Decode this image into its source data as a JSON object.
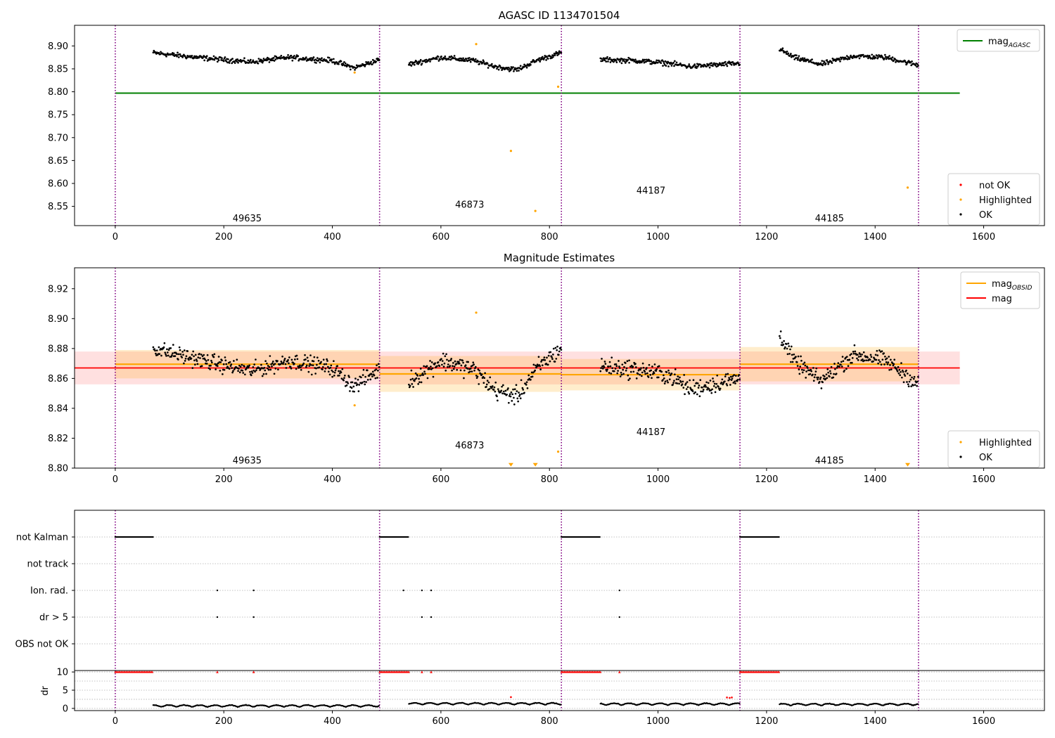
{
  "colors": {
    "ok": "#000000",
    "highlighted": "#ffa500",
    "not_ok": "#ff0000",
    "agasc": "#008000",
    "obs_mag": "#ffa500",
    "mag": "#ff0000",
    "obs_boundary": "#800080",
    "grid": "#b0b0b0"
  },
  "xaxis": {
    "range": [
      -75,
      1712
    ],
    "ticks": [
      0,
      200,
      400,
      600,
      800,
      1000,
      1200,
      1400,
      1600
    ],
    "tick_labels": [
      "0",
      "200",
      "400",
      "600",
      "800",
      "1000",
      "1200",
      "1400",
      "1600"
    ]
  },
  "obs_boundaries": [
    0,
    487,
    822,
    1151,
    1480
  ],
  "chart_data": [
    {
      "type": "scatter",
      "title": "AGASC ID 1134701504",
      "ylim": [
        8.508,
        8.945
      ],
      "yticks": [
        8.55,
        8.6,
        8.65,
        8.7,
        8.75,
        8.8,
        8.85,
        8.9
      ],
      "ytick_labels": [
        "8.55",
        "8.60",
        "8.65",
        "8.70",
        "8.75",
        "8.80",
        "8.85",
        "8.90"
      ],
      "agasc_line": {
        "y": 8.797,
        "x": [
          0,
          1556
        ]
      },
      "obs_labels": [
        {
          "text": "49635",
          "x": 243,
          "y": 8.523
        },
        {
          "text": "46873",
          "x": 653,
          "y": 8.553
        },
        {
          "text": "44187",
          "x": 987,
          "y": 8.584
        },
        {
          "text": "44185",
          "x": 1316,
          "y": 8.523
        }
      ],
      "segments": [
        {
          "x": [
            70,
            487
          ],
          "profile": [
            [
              70,
              8.885
            ],
            [
              150,
              8.875
            ],
            [
              250,
              8.865
            ],
            [
              320,
              8.875
            ],
            [
              400,
              8.868
            ],
            [
              440,
              8.852
            ],
            [
              487,
              8.87
            ]
          ],
          "spread": 0.008
        },
        {
          "x": [
            541,
            822
          ],
          "profile": [
            [
              541,
              8.86
            ],
            [
              600,
              8.875
            ],
            [
              660,
              8.868
            ],
            [
              700,
              8.855
            ],
            [
              740,
              8.848
            ],
            [
              780,
              8.87
            ],
            [
              822,
              8.885
            ]
          ],
          "spread": 0.008
        },
        {
          "x": [
            894,
            1151
          ],
          "profile": [
            [
              894,
              8.87
            ],
            [
              960,
              8.868
            ],
            [
              1020,
              8.862
            ],
            [
              1060,
              8.855
            ],
            [
              1151,
              8.862
            ]
          ],
          "spread": 0.008
        },
        {
          "x": [
            1224,
            1480
          ],
          "profile": [
            [
              1224,
              8.893
            ],
            [
              1250,
              8.875
            ],
            [
              1300,
              8.86
            ],
            [
              1360,
              8.878
            ],
            [
              1420,
              8.875
            ],
            [
              1480,
              8.858
            ]
          ],
          "spread": 0.008
        }
      ],
      "highlighted": [
        {
          "x": 441,
          "y": 8.842
        },
        {
          "x": 665,
          "y": 8.904
        },
        {
          "x": 729,
          "y": 8.671
        },
        {
          "x": 774,
          "y": 8.54
        },
        {
          "x": 816,
          "y": 8.811
        },
        {
          "x": 1460,
          "y": 8.591
        }
      ],
      "legend_top": [
        {
          "label": "mag",
          "sub": "AGASC",
          "color": "#008000",
          "kind": "line"
        }
      ],
      "legend_bottom": [
        {
          "label": "not OK",
          "color": "#ff0000",
          "kind": "dot"
        },
        {
          "label": "Highlighted",
          "color": "#ffa500",
          "kind": "dot"
        },
        {
          "label": "OK",
          "color": "#000000",
          "kind": "dot"
        }
      ]
    },
    {
      "type": "scatter",
      "title": "Magnitude Estimates",
      "ylim": [
        8.8,
        8.934
      ],
      "yticks": [
        8.8,
        8.82,
        8.84,
        8.86,
        8.88,
        8.9,
        8.92
      ],
      "ytick_labels": [
        "8.80",
        "8.82",
        "8.84",
        "8.86",
        "8.88",
        "8.90",
        "8.92"
      ],
      "mag_line": {
        "y": 8.867,
        "lo": 8.856,
        "hi": 8.878,
        "x": [
          -75,
          1556
        ]
      },
      "obs_bands": [
        {
          "x": [
            0,
            487
          ],
          "y": 8.8695,
          "lo": 8.86,
          "hi": 8.879
        },
        {
          "x": [
            487,
            822
          ],
          "y": 8.863,
          "lo": 8.851,
          "hi": 8.875
        },
        {
          "x": [
            822,
            1151
          ],
          "y": 8.8625,
          "lo": 8.852,
          "hi": 8.873
        },
        {
          "x": [
            1151,
            1480
          ],
          "y": 8.8695,
          "lo": 8.858,
          "hi": 8.881
        }
      ],
      "obs_labels": [
        {
          "text": "49635",
          "x": 243,
          "y": 8.805
        },
        {
          "text": "46873",
          "x": 653,
          "y": 8.815
        },
        {
          "text": "44187",
          "x": 987,
          "y": 8.824
        },
        {
          "text": "44185",
          "x": 1316,
          "y": 8.805
        }
      ],
      "segments": [
        {
          "x": [
            70,
            487
          ],
          "profile": [
            [
              70,
              8.88
            ],
            [
              150,
              8.873
            ],
            [
              250,
              8.865
            ],
            [
              320,
              8.872
            ],
            [
              400,
              8.867
            ],
            [
              440,
              8.855
            ],
            [
              487,
              8.866
            ]
          ],
          "spread": 0.008
        },
        {
          "x": [
            541,
            822
          ],
          "profile": [
            [
              541,
              8.858
            ],
            [
              600,
              8.872
            ],
            [
              660,
              8.866
            ],
            [
              700,
              8.852
            ],
            [
              740,
              8.848
            ],
            [
              780,
              8.868
            ],
            [
              822,
              8.88
            ]
          ],
          "spread": 0.009
        },
        {
          "x": [
            894,
            1151
          ],
          "profile": [
            [
              894,
              8.868
            ],
            [
              960,
              8.866
            ],
            [
              1020,
              8.862
            ],
            [
              1060,
              8.853
            ],
            [
              1151,
              8.86
            ]
          ],
          "spread": 0.009
        },
        {
          "x": [
            1224,
            1480
          ],
          "profile": [
            [
              1224,
              8.89
            ],
            [
              1250,
              8.872
            ],
            [
              1300,
              8.858
            ],
            [
              1360,
              8.876
            ],
            [
              1420,
              8.872
            ],
            [
              1480,
              8.856
            ]
          ],
          "spread": 0.008
        }
      ],
      "highlighted": [
        {
          "x": 441,
          "y": 8.842
        },
        {
          "x": 665,
          "y": 8.904
        },
        {
          "x": 816,
          "y": 8.811
        }
      ],
      "offscale_markers": [
        {
          "x": 729,
          "y": 8.8015
        },
        {
          "x": 774,
          "y": 8.8015
        },
        {
          "x": 1460,
          "y": 8.8015
        }
      ],
      "legend_top": [
        {
          "label": "mag",
          "sub": "OBSID",
          "color": "#ffa500",
          "kind": "line"
        },
        {
          "label": "mag",
          "sub": "",
          "color": "#ff0000",
          "kind": "line"
        }
      ],
      "legend_bottom": [
        {
          "label": "Highlighted",
          "color": "#ffa500",
          "kind": "dot"
        },
        {
          "label": "OK",
          "color": "#000000",
          "kind": "dot"
        }
      ]
    },
    {
      "type": "scatter",
      "title": "",
      "flag_rows": [
        "not Kalman",
        "not track",
        "Ion. rad.",
        "dr > 5",
        "OBS not OK"
      ],
      "not_kalman_x": [
        [
          0,
          70
        ],
        [
          487,
          541
        ],
        [
          822,
          894
        ],
        [
          1151,
          1224
        ]
      ],
      "ion_rad_x": [
        188,
        255,
        531,
        565,
        582,
        929
      ],
      "dr5_x": [
        188,
        255,
        565,
        582,
        929
      ]
    },
    {
      "type": "scatter",
      "title": "",
      "ylabel": "dr",
      "ylim": [
        -0.6,
        10.4
      ],
      "yticks": [
        0,
        5,
        10
      ],
      "ytick_labels": [
        "0",
        "5",
        "10"
      ],
      "capped_x": [
        [
          0,
          70
        ],
        [
          487,
          541
        ],
        [
          822,
          894
        ],
        [
          1151,
          1224
        ]
      ],
      "capped_single_x": [
        188,
        255,
        565,
        582,
        929
      ],
      "segments": [
        {
          "x": [
            70,
            487
          ],
          "base": 0.4
        },
        {
          "x": [
            541,
            822
          ],
          "base": 1.0
        },
        {
          "x": [
            894,
            1151
          ],
          "base": 0.9
        },
        {
          "x": [
            1224,
            1480
          ],
          "base": 0.8
        }
      ],
      "red_points": [
        {
          "x": 729,
          "y": 3.1
        },
        {
          "x": 1127,
          "y": 3.0
        },
        {
          "x": 1132,
          "y": 2.9
        },
        {
          "x": 1136,
          "y": 3.0
        }
      ]
    }
  ]
}
